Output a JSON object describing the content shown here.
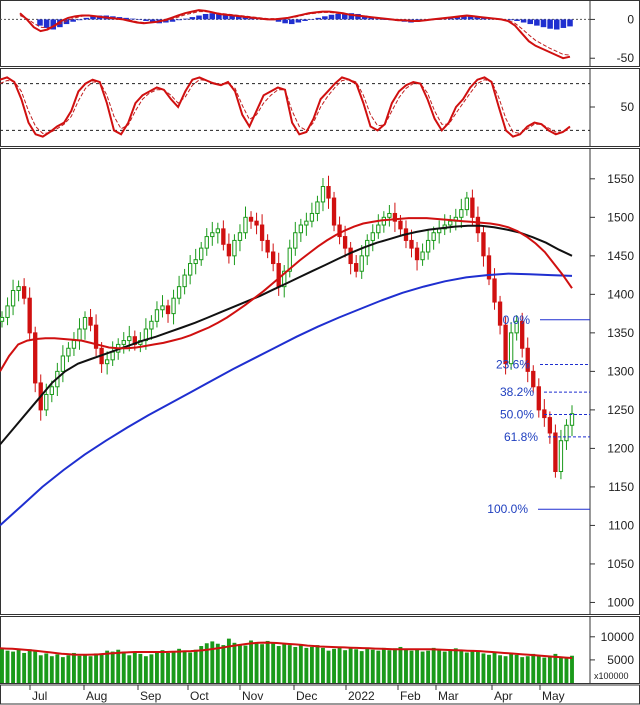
{
  "chart_data": {
    "type": "line",
    "x_labels": [
      "Jul",
      "Aug",
      "Sep",
      "Oct",
      "Nov",
      "Dec",
      "2022",
      "Feb",
      "Mar",
      "Apr",
      "May"
    ],
    "volume_multiplier": "x100000",
    "panels": [
      {
        "name": "",
        "type": "histogram-line",
        "y_ticks": [
          0,
          -50
        ],
        "ylim": [
          -60,
          25
        ],
        "histogram": [
          -8,
          -11,
          -13,
          -10,
          -6,
          -3,
          -1,
          2,
          4,
          5,
          5,
          4,
          3,
          2,
          1,
          0,
          -2,
          -4,
          -5,
          -4,
          -3,
          -1,
          1,
          3,
          5,
          7,
          8,
          7,
          6,
          5,
          4,
          3,
          2,
          1,
          0,
          -1,
          -3,
          -5,
          -6,
          -4,
          -2,
          0,
          2,
          4,
          6,
          7,
          8,
          8,
          7,
          5,
          3,
          1,
          0,
          -1,
          -2,
          -3,
          -4,
          -3,
          -2,
          -1,
          0,
          1,
          2,
          3,
          4,
          5,
          4,
          3,
          2,
          1,
          0,
          -1,
          -2,
          -4,
          -6,
          -8,
          -10,
          -12,
          -13,
          -11,
          -9
        ],
        "line": [
          8,
          0,
          -10,
          -15,
          -13,
          -8,
          -2,
          2,
          4,
          5,
          5,
          4,
          3,
          2,
          1,
          0,
          -2,
          -4,
          -5,
          -4,
          -3,
          -1,
          2,
          5,
          8,
          10,
          12,
          11,
          9,
          7,
          6,
          5,
          4,
          3,
          2,
          1,
          0,
          0,
          1,
          2,
          4,
          6,
          8,
          9,
          10,
          10,
          9,
          8,
          6,
          5,
          4,
          3,
          2,
          1,
          0,
          -1,
          -1,
          -2,
          -2,
          -1,
          0,
          1,
          2,
          3,
          4,
          5,
          4,
          3,
          2,
          1,
          0,
          -2,
          -8,
          -18,
          -28,
          -34,
          -38,
          -42,
          -46,
          -50,
          -48
        ],
        "signal": [
          5,
          1,
          -5,
          -10,
          -11,
          -9,
          -5,
          -1,
          2,
          4,
          5,
          4,
          3,
          2,
          1,
          0,
          -1,
          -3,
          -4,
          -4,
          -3,
          -2,
          0,
          3,
          6,
          8,
          10,
          10,
          9,
          8,
          7,
          6,
          5,
          4,
          3,
          2,
          1,
          1,
          1,
          2,
          3,
          5,
          7,
          8,
          9,
          9,
          8,
          7,
          6,
          5,
          4,
          3,
          2,
          1,
          0,
          0,
          -1,
          -1,
          -2,
          -1,
          0,
          0,
          1,
          2,
          3,
          4,
          4,
          3,
          2,
          1,
          0,
          -1,
          -5,
          -12,
          -20,
          -27,
          -32,
          -37,
          -41,
          -45,
          -46
        ]
      },
      {
        "name": "",
        "type": "oscillator",
        "y_ticks": [
          50
        ],
        "ylim": [
          0,
          100
        ],
        "levels": [
          20,
          80
        ],
        "line": [
          85,
          88,
          82,
          60,
          30,
          15,
          12,
          18,
          25,
          30,
          45,
          70,
          80,
          85,
          82,
          55,
          20,
          15,
          30,
          55,
          65,
          70,
          75,
          72,
          60,
          50,
          70,
          85,
          88,
          84,
          80,
          78,
          82,
          70,
          40,
          25,
          45,
          65,
          70,
          75,
          72,
          30,
          15,
          18,
          35,
          60,
          70,
          80,
          88,
          85,
          80,
          55,
          25,
          20,
          28,
          55,
          70,
          78,
          82,
          80,
          60,
          35,
          20,
          30,
          50,
          60,
          75,
          85,
          88,
          82,
          50,
          20,
          12,
          15,
          25,
          30,
          28,
          20,
          15,
          18,
          25
        ],
        "signal": [
          80,
          84,
          83,
          70,
          45,
          25,
          16,
          17,
          22,
          28,
          38,
          58,
          74,
          82,
          82,
          65,
          38,
          22,
          27,
          45,
          60,
          68,
          72,
          72,
          65,
          55,
          63,
          78,
          85,
          84,
          81,
          79,
          80,
          74,
          52,
          34,
          40,
          55,
          65,
          72,
          72,
          45,
          25,
          20,
          30,
          50,
          64,
          75,
          84,
          85,
          82,
          65,
          40,
          26,
          27,
          45,
          62,
          74,
          80,
          80,
          68,
          45,
          28,
          28,
          42,
          55,
          68,
          80,
          85,
          83,
          62,
          35,
          18,
          16,
          22,
          28,
          28,
          23,
          18,
          18,
          22
        ]
      },
      {
        "name": "",
        "type": "price",
        "y_ticks": [
          1550,
          1500,
          1450,
          1400,
          1350,
          1300,
          1250,
          1200,
          1150,
          1100,
          1050,
          1000
        ],
        "ylim": [
          985,
          1590
        ],
        "closes": [
          1370,
          1385,
          1405,
          1410,
          1395,
          1350,
          1285,
          1250,
          1270,
          1280,
          1300,
          1320,
          1330,
          1340,
          1355,
          1370,
          1360,
          1330,
          1310,
          1315,
          1325,
          1335,
          1340,
          1345,
          1335,
          1340,
          1355,
          1365,
          1380,
          1385,
          1375,
          1395,
          1410,
          1425,
          1440,
          1445,
          1460,
          1475,
          1480,
          1485,
          1465,
          1450,
          1470,
          1480,
          1500,
          1495,
          1490,
          1470,
          1455,
          1440,
          1410,
          1430,
          1460,
          1480,
          1490,
          1495,
          1505,
          1520,
          1540,
          1525,
          1490,
          1475,
          1460,
          1440,
          1430,
          1450,
          1470,
          1480,
          1490,
          1500,
          1505,
          1495,
          1485,
          1470,
          1460,
          1445,
          1455,
          1470,
          1480,
          1485,
          1490,
          1495,
          1500,
          1510,
          1525,
          1500,
          1480,
          1450,
          1420,
          1390,
          1360,
          1310,
          1350,
          1365,
          1330,
          1300,
          1280,
          1250,
          1240,
          1220,
          1170,
          1210,
          1230,
          1245
        ],
        "ma_fast": [
          1300,
          1320,
          1335,
          1340,
          1342,
          1343,
          1343,
          1342,
          1341,
          1340,
          1337,
          1334,
          1331,
          1330,
          1330,
          1331,
          1333,
          1335,
          1337,
          1340,
          1343,
          1347,
          1352,
          1357,
          1363,
          1370,
          1378,
          1386,
          1395,
          1404,
          1414,
          1424,
          1434,
          1444,
          1453,
          1462,
          1470,
          1477,
          1483,
          1488,
          1492,
          1494,
          1496,
          1497,
          1498,
          1499,
          1499,
          1499,
          1498,
          1497,
          1496,
          1495,
          1494,
          1493,
          1492,
          1490,
          1487,
          1482,
          1475,
          1466,
          1455,
          1440,
          1425,
          1408
        ],
        "ma_mid": [
          1205,
          1225,
          1245,
          1265,
          1285,
          1300,
          1310,
          1316,
          1322,
          1328,
          1334,
          1340,
          1345,
          1351,
          1357,
          1363,
          1370,
          1377,
          1384,
          1391,
          1398,
          1406,
          1414,
          1422,
          1430,
          1438,
          1446,
          1454,
          1461,
          1467,
          1472,
          1477,
          1481,
          1484,
          1486,
          1488,
          1489,
          1489,
          1487,
          1484,
          1480,
          1474,
          1467,
          1458,
          1450
        ],
        "ma_slow": [
          1100,
          1125,
          1150,
          1172,
          1192,
          1210,
          1227,
          1243,
          1258,
          1273,
          1288,
          1303,
          1317,
          1331,
          1345,
          1358,
          1370,
          1381,
          1392,
          1402,
          1410,
          1417,
          1422,
          1425,
          1427,
          1426,
          1425,
          1424
        ],
        "fib_levels": [
          {
            "label": "0.0%",
            "value": 1367
          },
          {
            "label": "23.6%",
            "value": 1309
          },
          {
            "label": "38.2%",
            "value": 1273
          },
          {
            "label": "50.0%",
            "value": 1244
          },
          {
            "label": "61.8%",
            "value": 1215
          },
          {
            "label": "100.0%",
            "value": 1121
          }
        ]
      },
      {
        "name": "",
        "type": "volume",
        "y_ticks": [
          10000,
          5000
        ],
        "ylim": [
          0,
          14500
        ],
        "volume": [
          7500,
          7000,
          6800,
          7200,
          6500,
          7300,
          6900,
          6000,
          6400,
          5800,
          6200,
          5600,
          6000,
          6500,
          5900,
          6100,
          5800,
          6400,
          6200,
          7000,
          6800,
          7200,
          6600,
          6000,
          6500,
          6300,
          5800,
          6200,
          6700,
          7100,
          6500,
          6900,
          7400,
          7000,
          6600,
          7200,
          8000,
          8600,
          9000,
          8500,
          8200,
          9600,
          8700,
          8300,
          8100,
          9200,
          8800,
          8400,
          9100,
          8800,
          8000,
          8600,
          8200,
          7800,
          8400,
          7600,
          7800,
          8200,
          7600,
          7000,
          7400,
          7800,
          7100,
          7600,
          7300,
          6900,
          7400,
          7200,
          7000,
          7600,
          7100,
          7500,
          7800,
          7300,
          7000,
          7200,
          6800,
          7000,
          7600,
          7300,
          6800,
          7200,
          7500,
          7100,
          6600,
          7000,
          6700,
          6400,
          6100,
          6500,
          6000,
          5800,
          6300,
          6100,
          5600,
          5800,
          6300,
          6000,
          5500,
          5800,
          6300,
          5700,
          5600,
          5900
        ],
        "ma": [
          7500,
          7450,
          7400,
          7300,
          7200,
          7100,
          6950,
          6800,
          6650,
          6500,
          6350,
          6250,
          6150,
          6100,
          6100,
          6150,
          6200,
          6300,
          6400,
          6500,
          6600,
          6650,
          6700,
          6700,
          6700,
          6700,
          6700,
          6700,
          6750,
          6800,
          6850,
          6900,
          7000,
          7100,
          7250,
          7450,
          7650,
          7850,
          8050,
          8250,
          8450,
          8600,
          8700,
          8750,
          8700,
          8650,
          8550,
          8450,
          8350,
          8250,
          8100,
          8000,
          7900,
          7850,
          7800,
          7750,
          7700,
          7650,
          7600,
          7550,
          7500,
          7450,
          7400,
          7350,
          7300,
          7300,
          7300,
          7300,
          7300,
          7300,
          7300,
          7250,
          7200,
          7150,
          7100,
          7050,
          7000,
          6950,
          6900,
          6800,
          6700,
          6600,
          6500,
          6400,
          6300,
          6200,
          6100,
          6000,
          5900,
          5800,
          5700,
          5600,
          5500,
          5400
        ]
      }
    ]
  }
}
